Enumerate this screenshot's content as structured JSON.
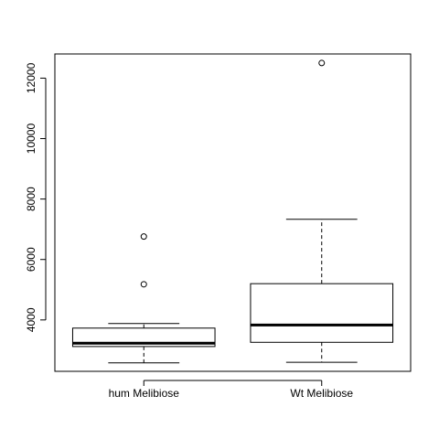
{
  "chart_data": {
    "type": "boxplot",
    "title": "",
    "xlabel": "",
    "ylabel": "",
    "ylim": [
      2300,
      12800
    ],
    "yticks": [
      4000,
      6000,
      8000,
      10000,
      12000
    ],
    "ytick_labels": [
      "4000",
      "6000",
      "8000",
      "10000",
      "12000"
    ],
    "grid": false,
    "categories": [
      "hum Melibiose",
      "Wt Melibiose"
    ],
    "boxes": [
      {
        "whisker_low": 2580,
        "q1": 3120,
        "median": 3230,
        "q3": 3730,
        "whisker_high": 3880,
        "outliers": [
          5180,
          6760
        ]
      },
      {
        "whisker_low": 2600,
        "q1": 3260,
        "median": 3830,
        "q3": 5200,
        "whisker_high": 7330,
        "outliers": [
          12500
        ]
      }
    ]
  }
}
